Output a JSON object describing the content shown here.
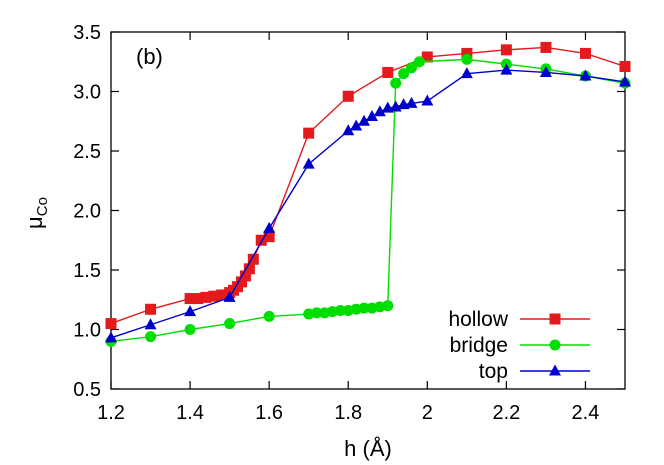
{
  "chart_data": {
    "type": "line",
    "annotation": "(b)",
    "xlabel": "h (Å)",
    "ylabel": {
      "base": "μ",
      "sub": "Co"
    },
    "xlim": [
      1.2,
      2.5
    ],
    "ylim": [
      0.5,
      3.5
    ],
    "xticks": [
      1.2,
      1.4,
      1.6,
      1.8,
      2.0,
      2.2,
      2.4
    ],
    "xtick_labels": [
      "1.2",
      "1.4",
      "1.6",
      "1.8",
      "2",
      "2.2",
      "2.4"
    ],
    "yticks": [
      0.5,
      1.0,
      1.5,
      2.0,
      2.5,
      3.0,
      3.5
    ],
    "ytick_labels": [
      "0.5",
      "1.0",
      "1.5",
      "2.0",
      "2.5",
      "3.0",
      "3.5"
    ],
    "grid": false,
    "legend_position": "bottom-right",
    "series": [
      {
        "name": "hollow",
        "color": "#e41a1c",
        "marker": "square",
        "x": [
          1.2,
          1.3,
          1.4,
          1.42,
          1.44,
          1.46,
          1.48,
          1.5,
          1.51,
          1.52,
          1.53,
          1.54,
          1.55,
          1.56,
          1.58,
          1.6,
          1.7,
          1.8,
          1.9,
          2.0,
          2.1,
          2.2,
          2.3,
          2.4,
          2.5
        ],
        "y": [
          1.05,
          1.17,
          1.26,
          1.26,
          1.27,
          1.28,
          1.29,
          1.31,
          1.33,
          1.36,
          1.4,
          1.45,
          1.51,
          1.59,
          1.75,
          1.78,
          2.65,
          2.96,
          3.16,
          3.29,
          3.32,
          3.35,
          3.37,
          3.32,
          3.21
        ]
      },
      {
        "name": "bridge",
        "color": "#00dd00",
        "marker": "circle",
        "x": [
          1.2,
          1.3,
          1.4,
          1.5,
          1.6,
          1.7,
          1.72,
          1.74,
          1.76,
          1.78,
          1.8,
          1.82,
          1.84,
          1.86,
          1.88,
          1.9,
          1.92,
          1.94,
          1.96,
          1.98,
          2.1,
          2.2,
          2.3,
          2.4,
          2.5
        ],
        "y": [
          0.9,
          0.94,
          1.0,
          1.05,
          1.11,
          1.13,
          1.14,
          1.14,
          1.15,
          1.16,
          1.16,
          1.17,
          1.18,
          1.18,
          1.19,
          1.2,
          3.07,
          3.15,
          3.2,
          3.25,
          3.27,
          3.23,
          3.19,
          3.13,
          3.07
        ]
      },
      {
        "name": "top",
        "color": "#0000cc",
        "marker": "triangle",
        "x": [
          1.2,
          1.3,
          1.4,
          1.5,
          1.6,
          1.7,
          1.8,
          1.82,
          1.84,
          1.86,
          1.88,
          1.9,
          1.92,
          1.94,
          1.96,
          2.0,
          2.1,
          2.2,
          2.3,
          2.4,
          2.5
        ],
        "y": [
          0.93,
          1.04,
          1.15,
          1.27,
          1.85,
          2.39,
          2.67,
          2.71,
          2.75,
          2.79,
          2.83,
          2.86,
          2.87,
          2.89,
          2.9,
          2.92,
          3.15,
          3.18,
          3.16,
          3.13,
          3.08
        ]
      }
    ]
  }
}
